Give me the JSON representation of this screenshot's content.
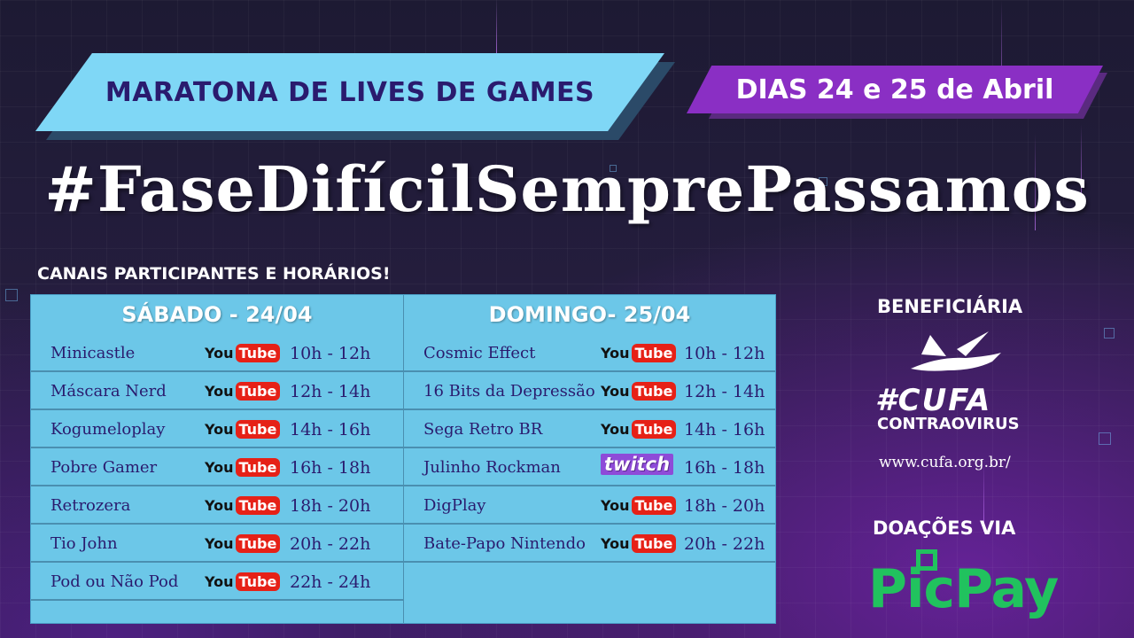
{
  "banner": {
    "title": "MARATONA DE LIVES DE GAMES",
    "dates": "DIAS 24 e 25 de Abril"
  },
  "hashtag": "#FaseDifícilSemprePassamos",
  "subtitle": "CANAIS PARTICIPANTES E HORÁRIOS!",
  "saturday": {
    "header": "SÁBADO -  24/04",
    "rows": [
      {
        "name": "Minicastle",
        "platform": "YouTube",
        "time": "10h - 12h"
      },
      {
        "name": "Máscara Nerd",
        "platform": "YouTube",
        "time": "12h - 14h"
      },
      {
        "name": "Kogumeloplay",
        "platform": "YouTube",
        "time": "14h - 16h"
      },
      {
        "name": "Pobre Gamer",
        "platform": "YouTube",
        "time": "16h - 18h"
      },
      {
        "name": "Retrozera",
        "platform": "YouTube",
        "time": "18h - 20h"
      },
      {
        "name": "Tio John",
        "platform": "YouTube",
        "time": "20h - 22h"
      },
      {
        "name": "Pod ou Não Pod",
        "platform": "YouTube",
        "time": "22h - 24h"
      }
    ]
  },
  "sunday": {
    "header": "DOMINGO-  25/04",
    "rows": [
      {
        "name": "Cosmic Effect",
        "platform": "YouTube",
        "time": "10h - 12h"
      },
      {
        "name": "16 Bits da Depressão",
        "platform": "YouTube",
        "time": "12h - 14h"
      },
      {
        "name": "Sega Retro BR",
        "platform": "YouTube",
        "time": "14h - 16h"
      },
      {
        "name": "Julinho Rockman",
        "platform": "twitch",
        "time": "16h - 18h"
      },
      {
        "name": "DigPlay",
        "platform": "YouTube",
        "time": "18h - 20h"
      },
      {
        "name": "Bate-Papo Nintendo",
        "platform": "YouTube",
        "time": "20h - 22h"
      }
    ]
  },
  "logos": {
    "youtube_you": "You",
    "youtube_tube": "Tube",
    "twitch": "twitch"
  },
  "beneficiary": {
    "label": "BENEFICIÁRIA",
    "name": "#CUFA",
    "sub": "CONTRAOVIRUS",
    "url": "www.cufa.org.br/"
  },
  "donation": {
    "label": "DOAÇÕES VIA",
    "brand": "PicPay"
  },
  "colors": {
    "banner_cyan": "#7fd7f6",
    "banner_purple": "#8a2fc4",
    "table_bg": "#6cc7e8",
    "table_text": "#2a1b6e",
    "picpay_green": "#21c25e",
    "youtube_red": "#e62117",
    "twitch_purple": "#8e4bd8"
  }
}
